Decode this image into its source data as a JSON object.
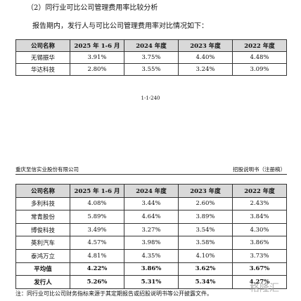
{
  "heading": "（2）同行业可比公司管理费用率比较分析",
  "intro": "报告期内，发行人与可比公司管理费用率对比情况如下：",
  "table1": {
    "header": [
      "公司名称",
      "2025 年 1-6 月",
      "2024 年度",
      "2023 年度",
      "2022 年度"
    ],
    "rows": [
      [
        "无锡振华",
        "3.91%",
        "3.75%",
        "4.40%",
        "4.48%"
      ],
      [
        "华达科技",
        "2.80%",
        "3.55%",
        "3.24%",
        "3.09%"
      ]
    ]
  },
  "page_number": "1-1-240",
  "running_header": {
    "company": "重庆至信实业股份有限公司",
    "document": "招股说明书（注册稿）"
  },
  "table2": {
    "header": [
      "公司名称",
      "2025 年 1-6 月",
      "2024 年度",
      "2023 年度",
      "2022 年度"
    ],
    "rows": [
      [
        "多利科技",
        "4.08%",
        "3.44%",
        "2.60%",
        "2.43%"
      ],
      [
        "常青股份",
        "5.89%",
        "4.64%",
        "3.89%",
        "3.84%"
      ],
      [
        "博俊科技",
        "3.49%",
        "3.27%",
        "3.54%",
        "4.30%"
      ],
      [
        "英利汽车",
        "4.57%",
        "3.98%",
        "3.58%",
        "3.86%"
      ],
      [
        "泰鸿万立",
        "4.81%",
        "4.35%",
        "4.10%",
        "3.73%"
      ],
      [
        "平均值",
        "4.22%",
        "3.86%",
        "3.62%",
        "3.67%"
      ],
      [
        "发行人",
        "5.26%",
        "5.31%",
        "5.34%",
        "4.27%"
      ]
    ]
  },
  "note": "注：同行业可比公司财务指标来源于其定期报告或招股说明书等公开披露文件。",
  "watermark": "格隆汇"
}
